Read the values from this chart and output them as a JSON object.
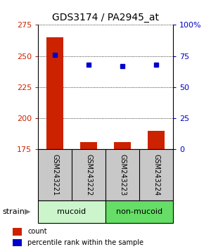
{
  "title": "GDS3174 / PA2945_at",
  "samples": [
    "GSM243221",
    "GSM243222",
    "GSM243223",
    "GSM243224"
  ],
  "counts": [
    265,
    181,
    181,
    190
  ],
  "percentiles": [
    76,
    68,
    67,
    68
  ],
  "ylim_left": [
    175,
    275
  ],
  "ylim_right": [
    0,
    100
  ],
  "yticks_left": [
    175,
    200,
    225,
    250,
    275
  ],
  "yticks_right": [
    0,
    25,
    50,
    75,
    100
  ],
  "ytick_right_labels": [
    "0",
    "25",
    "50",
    "75",
    "100%"
  ],
  "groups": [
    {
      "label": "mucoid",
      "indices": [
        0,
        1
      ],
      "color": "#ccf5cc"
    },
    {
      "label": "non-mucoid",
      "indices": [
        2,
        3
      ],
      "color": "#66dd66"
    }
  ],
  "bar_color": "#cc2200",
  "dot_color": "#0000cc",
  "bar_width": 0.5,
  "bg_color": "#ffffff",
  "label_color_left": "#cc2200",
  "label_color_right": "#0000cc",
  "legend_count_label": "count",
  "legend_pct_label": "percentile rank within the sample",
  "strain_label": "strain",
  "sample_label_bg": "#c8c8c8"
}
